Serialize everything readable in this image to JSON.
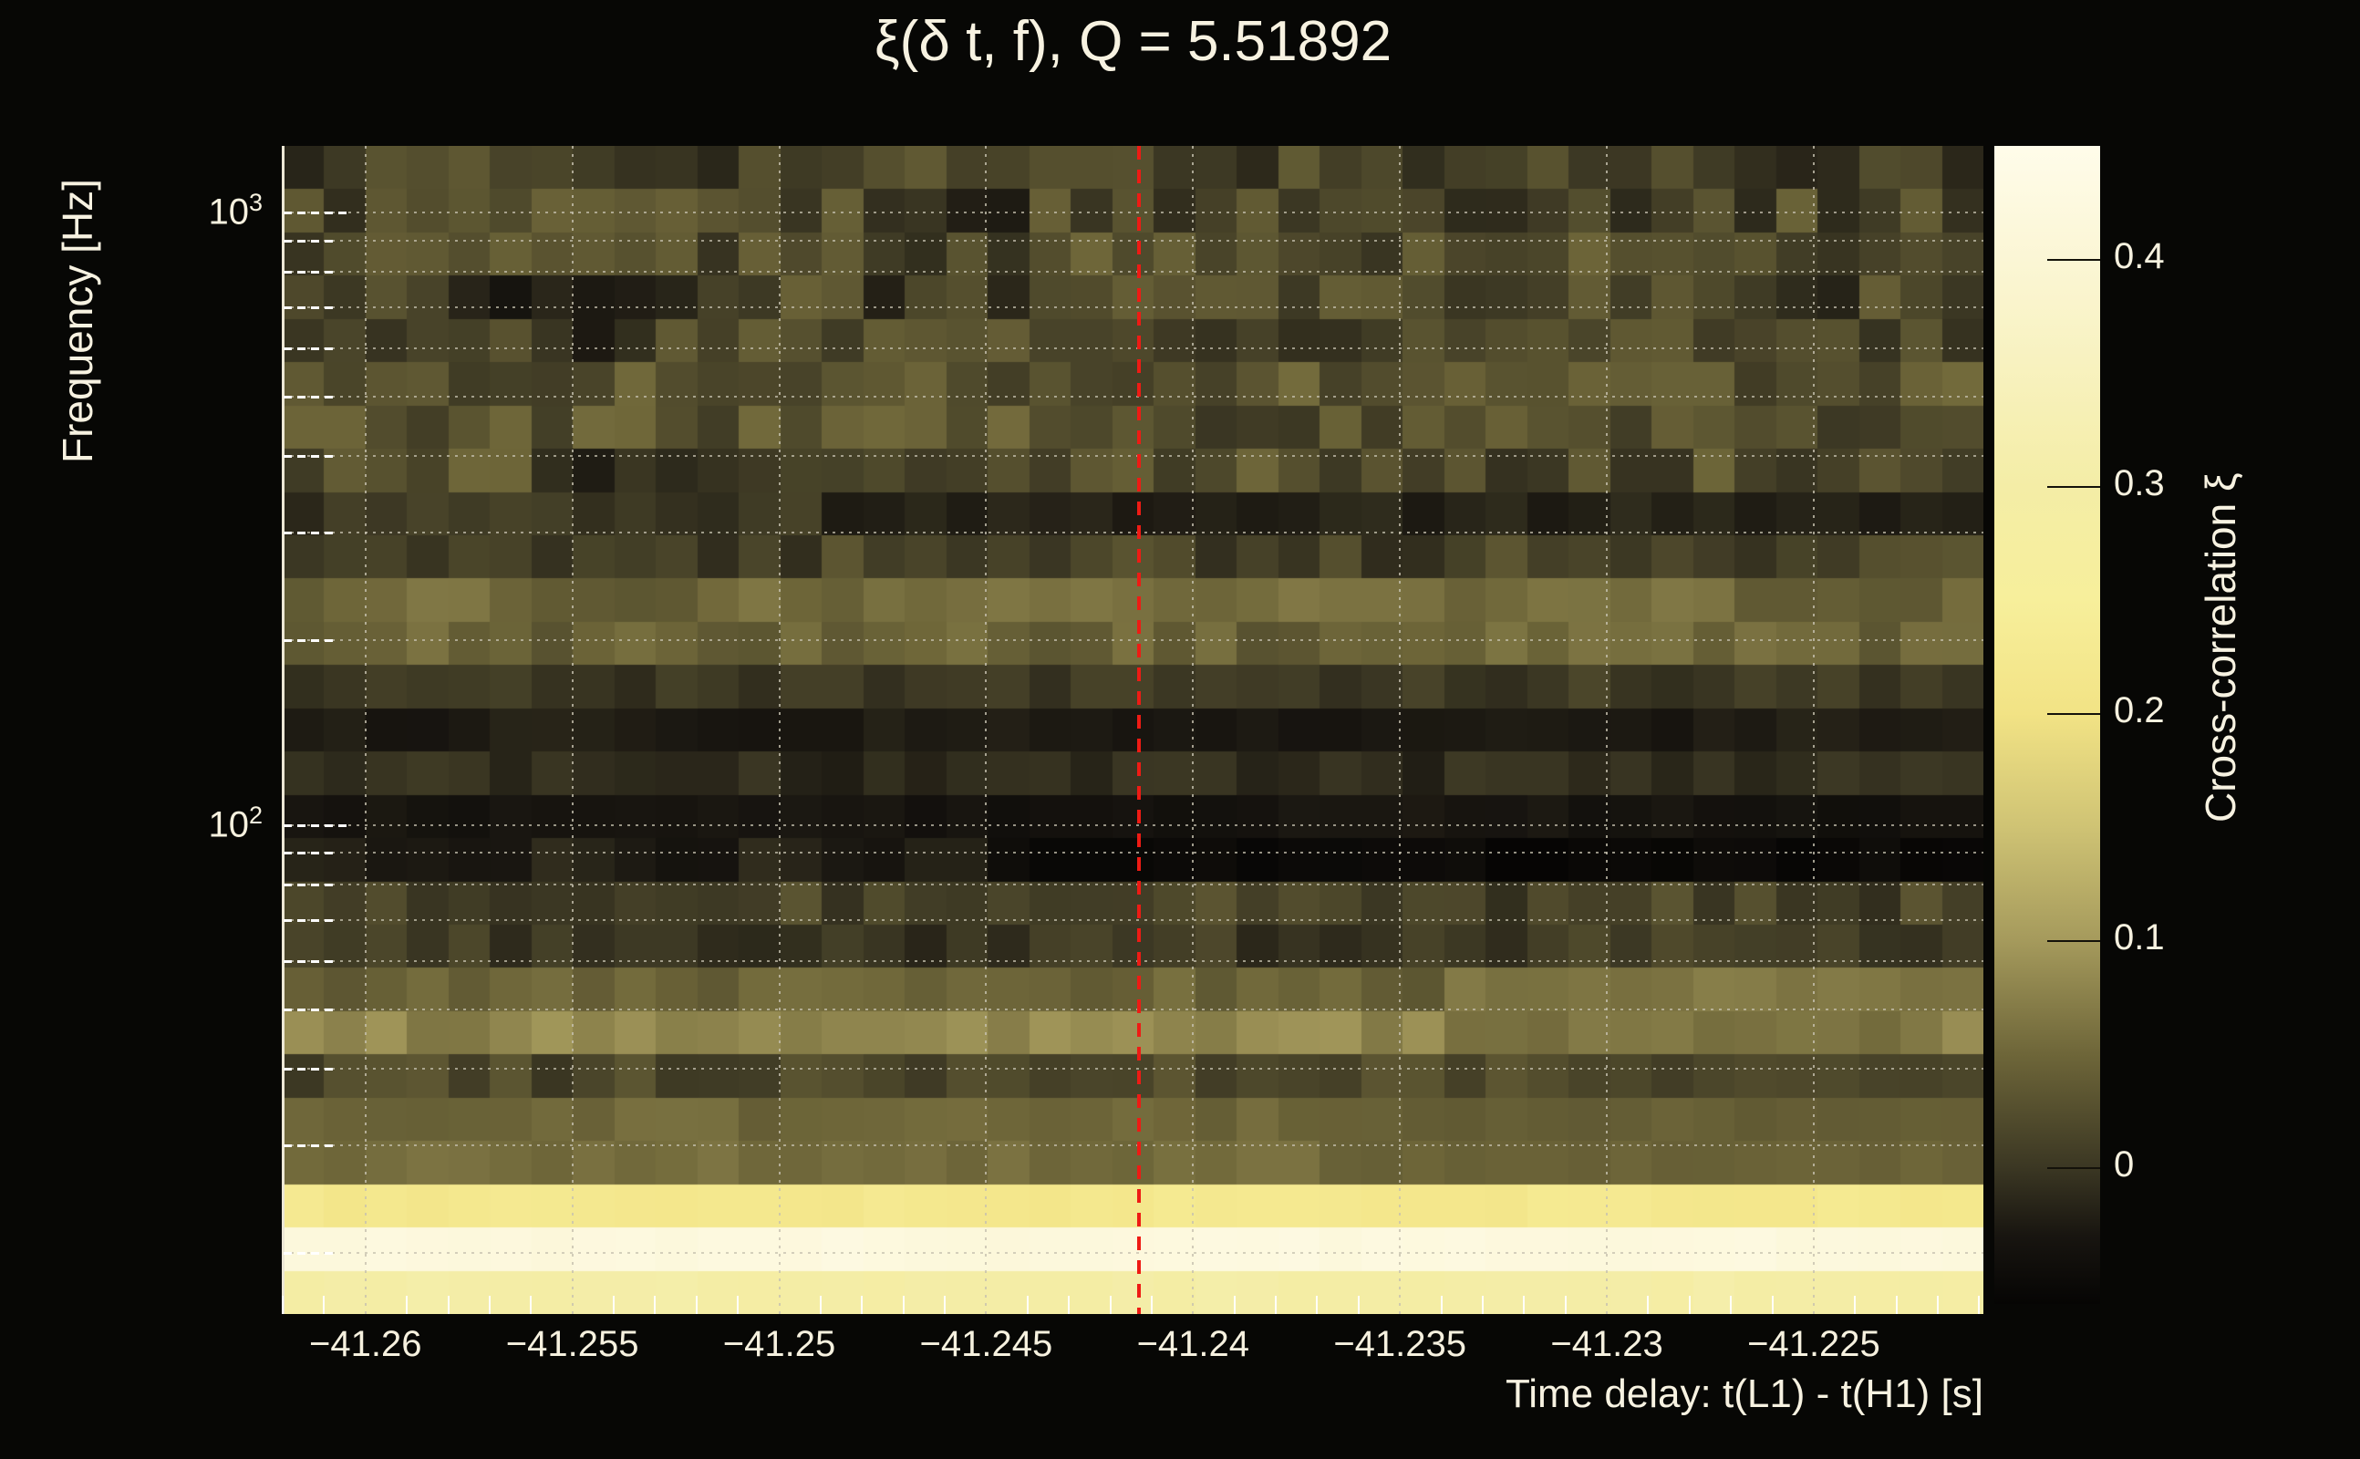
{
  "title": "ξ(δ t, f), Q = 5.51892",
  "axes": {
    "x_label": "Time delay: t(L1) - t(H1) [s]",
    "y_label": "Frequency [Hz]",
    "colorbar_label": "Cross-correlation ξ"
  },
  "chart_data": {
    "type": "heatmap",
    "title": "ξ(δ t, f), Q = 5.51892",
    "xlabel": "Time delay: t(L1) - t(H1) [s]",
    "ylabel": "Frequency [Hz]",
    "x_range": [
      -41.262,
      -41.2209
    ],
    "y_range_hz": [
      15.9,
      1284
    ],
    "y_scale": "log",
    "x_ticks": [
      {
        "v": -41.26,
        "label": "−41.26"
      },
      {
        "v": -41.255,
        "label": "−41.255"
      },
      {
        "v": -41.25,
        "label": "−41.25"
      },
      {
        "v": -41.245,
        "label": "−41.245"
      },
      {
        "v": -41.24,
        "label": "−41.24"
      },
      {
        "v": -41.235,
        "label": "−41.235"
      },
      {
        "v": -41.23,
        "label": "−41.23"
      },
      {
        "v": -41.225,
        "label": "−41.225"
      }
    ],
    "x_minor_step": 0.001,
    "y_ticks": [
      {
        "v": 1000,
        "base": "10",
        "exp": "3"
      },
      {
        "v": 100,
        "base": "10",
        "exp": "2"
      }
    ],
    "y_minor_gridlines_hz": [
      900,
      800,
      700,
      600,
      500,
      400,
      300,
      200,
      90,
      80,
      70,
      60,
      50,
      40,
      30,
      20
    ],
    "grid": {
      "dotted": true,
      "color_hint": "#c6c1af"
    },
    "marker_line": {
      "x": -41.2413,
      "color": "#ee1b14",
      "style": "dashed"
    },
    "colorbar": {
      "label": "Cross-correlation ξ",
      "min": -0.06,
      "max": 0.45,
      "ticks": [
        {
          "v": 0.4,
          "label": "0.4"
        },
        {
          "v": 0.3,
          "label": "0.3"
        },
        {
          "v": 0.2,
          "label": "0.2"
        },
        {
          "v": 0.1,
          "label": "0.1"
        },
        {
          "v": 0.0,
          "label": "0"
        }
      ]
    },
    "colormap": [
      [
        -0.06,
        "#060504"
      ],
      [
        -0.03,
        "#181510"
      ],
      [
        0.0,
        "#3b3723"
      ],
      [
        0.05,
        "#6e6639"
      ],
      [
        0.1,
        "#a59a5c"
      ],
      [
        0.15,
        "#cfc374"
      ],
      [
        0.2,
        "#f2e385"
      ],
      [
        0.25,
        "#f7ef9b"
      ],
      [
        0.3,
        "#f4eda6"
      ],
      [
        0.4,
        "#fbf6d5"
      ],
      [
        0.45,
        "#fffcea"
      ]
    ],
    "n_cols": 41,
    "n_rows": 27,
    "rows_top_to_bottom": [
      {
        "base": 0.012,
        "amp": 0.028
      },
      {
        "base": 0.016,
        "amp": 0.03
      },
      {
        "base": 0.022,
        "amp": 0.03
      },
      {
        "base": 0.012,
        "amp": 0.032
      },
      {
        "base": 0.018,
        "amp": 0.028
      },
      {
        "base": 0.03,
        "amp": 0.026
      },
      {
        "base": 0.026,
        "amp": 0.03
      },
      {
        "base": 0.02,
        "amp": 0.03
      },
      {
        "base": 0.0,
        "amp": 0.018
      },
      {
        "base": 0.012,
        "amp": 0.022
      },
      {
        "base": 0.05,
        "amp": 0.018
      },
      {
        "base": 0.046,
        "amp": 0.018
      },
      {
        "base": 0.002,
        "amp": 0.014
      },
      {
        "base": -0.024,
        "amp": 0.008
      },
      {
        "base": -0.01,
        "amp": 0.014
      },
      {
        "base": -0.034,
        "amp": 0.008
      },
      {
        "base": -0.022,
        "amp": 0.016
      },
      {
        "base": 0.012,
        "amp": 0.02
      },
      {
        "base": 0.002,
        "amp": 0.018
      },
      {
        "base": 0.046,
        "amp": 0.014
      },
      {
        "base": 0.08,
        "amp": 0.016
      },
      {
        "base": 0.016,
        "amp": 0.018
      },
      {
        "base": 0.05,
        "amp": 0.01
      },
      {
        "base": 0.056,
        "amp": 0.008
      },
      {
        "base": 0.22,
        "amp": 0.008
      },
      {
        "base": 0.42,
        "amp": 0.008
      },
      {
        "base": 0.3,
        "amp": 0.01
      }
    ],
    "patches": [
      {
        "r": 1,
        "c0": 15,
        "c1": 18,
        "v": -0.012
      },
      {
        "r": 3,
        "c0": 5,
        "c1": 10,
        "v": -0.02
      },
      {
        "r": 4,
        "c0": 6,
        "c1": 9,
        "v": -0.014
      },
      {
        "r": 7,
        "c0": 6,
        "c1": 11,
        "v": -0.014
      },
      {
        "r": 8,
        "c0": 13,
        "c1": 41,
        "v": -0.018
      },
      {
        "r": 10,
        "c0": 14,
        "c1": 28,
        "v": 0.058
      },
      {
        "r": 13,
        "c0": 18,
        "c1": 33,
        "v": -0.028
      },
      {
        "r": 16,
        "c0": 17,
        "c1": 41,
        "v": -0.052
      },
      {
        "r": 19,
        "c0": 28,
        "c1": 41,
        "v": 0.066
      },
      {
        "r": 20,
        "c0": 28,
        "c1": 40,
        "v": 0.062
      },
      {
        "r": 22,
        "c0": 25,
        "c1": 41,
        "v": 0.042
      },
      {
        "r": 23,
        "c0": 25,
        "c1": 41,
        "v": 0.046
      }
    ]
  }
}
